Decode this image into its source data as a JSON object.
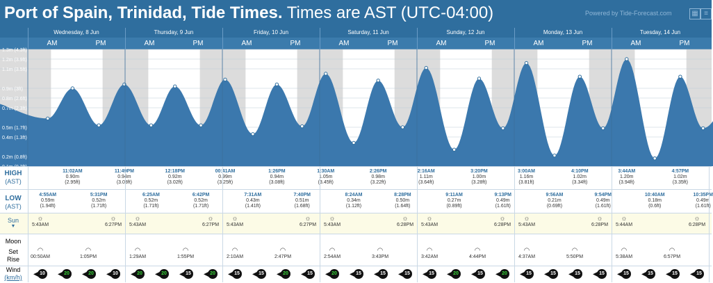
{
  "title_bold": "Port of Spain, Trinidad, Tide Times.",
  "title_rest": " Times are AST (UTC-04:00)",
  "powered": "Powered by Tide-Forecast.com",
  "days": [
    "Wednesday, 8 Jun",
    "Thursday, 9 Jun",
    "Friday, 10 Jun",
    "Saturday, 11 Jun",
    "Sunday, 12 Jun",
    "Monday, 13 Jun",
    "Tuesday, 14 Jun"
  ],
  "am": "AM",
  "pm": "PM",
  "y_labels": [
    "1.3m (4.3ft)",
    "1.2m (3.9ft)",
    "1.1m (3.5ft)",
    "0.9m (3ft)",
    "0.8m (2.6ft)",
    "0.7m (2.3ft)",
    "0.5m (1.7ft)",
    "0.4m (1.3ft)",
    "0.2m (0.8ft)",
    "0.1m (0.3ft)"
  ],
  "labels": {
    "high": "HIGH",
    "low": "LOW",
    "ast": "(AST)",
    "sun": "Sun",
    "moon": "Moon",
    "set": "Set",
    "rise": "Rise",
    "wind": "Wind",
    "kmh": "(km/h)"
  },
  "highs": [
    {
      "time": "11:02AM",
      "m": "0.90m",
      "ft": "(2.95ft)"
    },
    {
      "time": "11:49PM",
      "m": "0.94m",
      "ft": "(3.08ft)"
    },
    {
      "time": "12:18PM",
      "m": "0.92m",
      "ft": "(3.02ft)"
    },
    {
      "time": "00:41AM",
      "m": "0.99m",
      "ft": "(3.25ft)"
    },
    {
      "time": "1:26PM",
      "m": "0.94m",
      "ft": "(3.08ft)"
    },
    {
      "time": "1:30AM",
      "m": "1.05m",
      "ft": "(3.45ft)"
    },
    {
      "time": "2:26PM",
      "m": "0.98m",
      "ft": "(3.22ft)"
    },
    {
      "time": "2:16AM",
      "m": "1.11m",
      "ft": "(3.64ft)"
    },
    {
      "time": "3:20PM",
      "m": "1.00m",
      "ft": "(3.28ft)"
    },
    {
      "time": "3:00AM",
      "m": "1.16m",
      "ft": "(3.81ft)"
    },
    {
      "time": "4:10PM",
      "m": "1.02m",
      "ft": "(3.34ft)"
    },
    {
      "time": "3:44AM",
      "m": "1.20m",
      "ft": "(3.94ft)"
    },
    {
      "time": "4:57PM",
      "m": "1.02m",
      "ft": "(3.35ft)"
    }
  ],
  "lows": [
    {
      "time": "4:55AM",
      "m": "0.59m",
      "ft": "(1.94ft)"
    },
    {
      "time": "5:31PM",
      "m": "0.52m",
      "ft": "(1.71ft)"
    },
    {
      "time": "6:25AM",
      "m": "0.52m",
      "ft": "(1.71ft)"
    },
    {
      "time": "6:42PM",
      "m": "0.52m",
      "ft": "(1.71ft)"
    },
    {
      "time": "7:31AM",
      "m": "0.43m",
      "ft": "(1.41ft)"
    },
    {
      "time": "7:40PM",
      "m": "0.51m",
      "ft": "(1.68ft)"
    },
    {
      "time": "8:24AM",
      "m": "0.34m",
      "ft": "(1.12ft)"
    },
    {
      "time": "8:28PM",
      "m": "0.50m",
      "ft": "(1.64ft)"
    },
    {
      "time": "9:11AM",
      "m": "0.27m",
      "ft": "(0.89ft)"
    },
    {
      "time": "9:13PM",
      "m": "0.49m",
      "ft": "(1.61ft)"
    },
    {
      "time": "9:56AM",
      "m": "0.21m",
      "ft": "(0.69ft)"
    },
    {
      "time": "9:54PM",
      "m": "0.49m",
      "ft": "(1.61ft)"
    },
    {
      "time": "10:40AM",
      "m": "0.18m",
      "ft": "(0.6ft)"
    },
    {
      "time": "10:35PM",
      "m": "0.49m",
      "ft": "(1.61ft)"
    }
  ],
  "sunrise": [
    "5:43AM",
    "5:43AM",
    "5:43AM",
    "5:43AM",
    "5:43AM",
    "5:43AM",
    "5:44AM"
  ],
  "sunset": [
    "6:27PM",
    "6:27PM",
    "6:27PM",
    "6:28PM",
    "6:28PM",
    "6:28PM",
    "6:28PM"
  ],
  "moonset": [
    "00:50AM",
    "1:29AM",
    "2:10AM",
    "2:54AM",
    "3:42AM",
    "4:37AM",
    "5:38AM"
  ],
  "moonrise": [
    "1:05PM",
    "1:55PM",
    "2:47PM",
    "3:43PM",
    "4:44PM",
    "5:50PM",
    "6:57PM"
  ],
  "wind": [
    "10",
    "20",
    "20",
    "10",
    "20",
    "20",
    "15",
    "20",
    "15",
    "15",
    "20",
    "15",
    "20",
    "15",
    "15",
    "15",
    "15",
    "20",
    "15",
    "20",
    "15",
    "15",
    "15",
    "15",
    "15",
    "15",
    "15",
    "15"
  ],
  "colors": {
    "water": "#3b78ad",
    "night": "#dcdcdc",
    "header": "#2f6e9e"
  }
}
